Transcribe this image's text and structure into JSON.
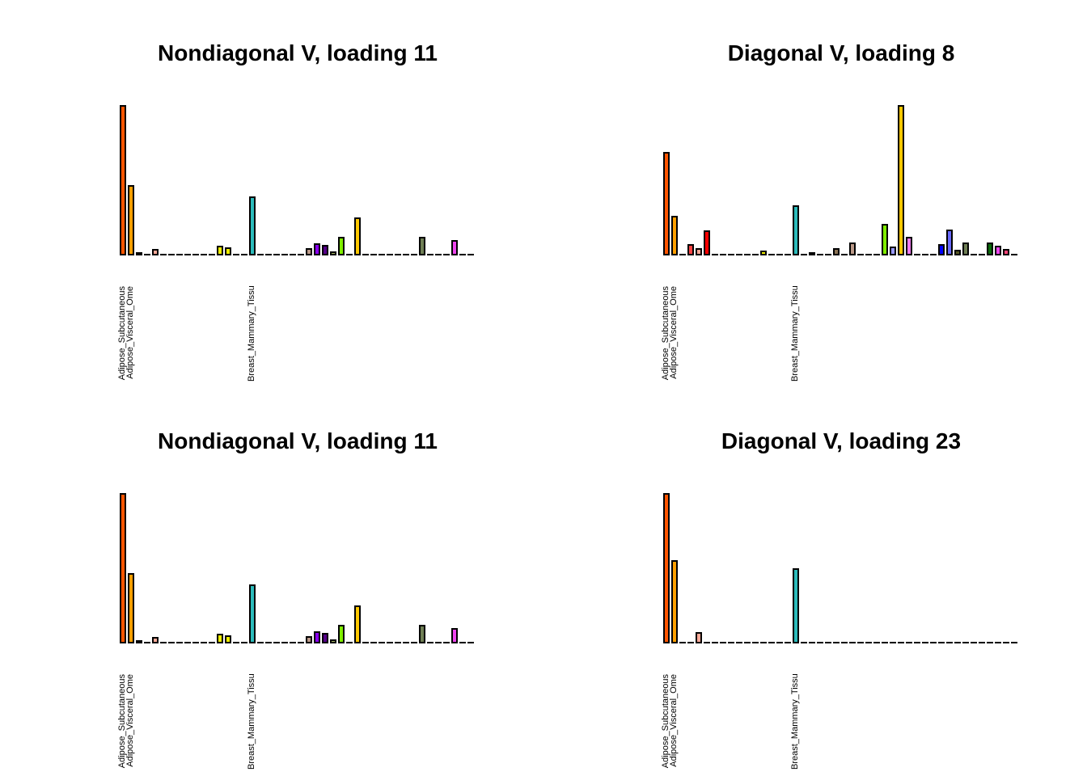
{
  "chart_data": {
    "type": "bar",
    "layout": "2x2-panel-grid",
    "n_bars_per_panel": 44,
    "y_axis": "none",
    "x_axis_style": "dashed baseline formed by zero-height outlined bars",
    "bar_outline_color": "#000000",
    "bar_colors": [
      "#FF5500",
      "#FF9F00",
      "#33DD33",
      "#FF4444",
      "#FFAA99",
      "#FF0000",
      "#EEEE00",
      "#EEEE00",
      "#EEEE00",
      "#EEEE00",
      "#EEEE00",
      "#EEEE00",
      "#EEEE00",
      "#EEEE00",
      "#EEEE00",
      "#EEEE00",
      "#2CBCBC",
      "#CC66FF",
      "#AAEEFF",
      "#EEBB77",
      "#CC9955",
      "#8B7355",
      "#552200",
      "#BB9988",
      "#8800EE",
      "#550088",
      "#AABB66",
      "#7FEE00",
      "#9999FF",
      "#FFC800",
      "#EE7AEE",
      "#995522",
      "#AAFF99",
      "#DDDDDD",
      "#0000FF",
      "#6A6AFF",
      "#555522",
      "#6F7F55",
      "#FFDD99",
      "#AAAAAA",
      "#0A6A0A",
      "#EE44EE",
      "#FF4477",
      "#FF00BB"
    ],
    "x_tick_labels": [
      {
        "bar_index": 1,
        "label": "Adipose_Subcutaneous"
      },
      {
        "bar_index": 2,
        "label": "Adipose_Visceral_Ome"
      },
      {
        "bar_index": 17,
        "label": "Breast_Mammary_Tissu"
      }
    ],
    "panels": [
      {
        "position": "top-left",
        "title": "Nondiagonal V, loading 11",
        "values": [
          186,
          87,
          2,
          0,
          8,
          0,
          0,
          0,
          0,
          0,
          0,
          0,
          12,
          10,
          0,
          0,
          73,
          0,
          0,
          0,
          0,
          0,
          0,
          9,
          15,
          13,
          5,
          23,
          0,
          47,
          0,
          0,
          0,
          0,
          0,
          0,
          0,
          23,
          0,
          0,
          0,
          19,
          0,
          0
        ]
      },
      {
        "position": "top-right",
        "title": "Diagonal V, loading 8",
        "values": [
          128,
          49,
          0,
          14,
          9,
          31,
          0,
          0,
          0,
          0,
          0,
          0,
          6,
          0,
          0,
          0,
          62,
          0,
          2,
          0,
          0,
          9,
          0,
          16,
          0,
          0,
          0,
          39,
          11,
          186,
          23,
          0,
          0,
          0,
          14,
          32,
          7,
          16,
          0,
          0,
          16,
          12,
          8,
          0
        ]
      },
      {
        "position": "bottom-left",
        "title": "Nondiagonal V, loading 11",
        "values": [
          186,
          87,
          2,
          0,
          8,
          0,
          0,
          0,
          0,
          0,
          0,
          0,
          12,
          10,
          0,
          0,
          73,
          0,
          0,
          0,
          0,
          0,
          0,
          9,
          15,
          13,
          5,
          23,
          0,
          47,
          0,
          0,
          0,
          0,
          0,
          0,
          0,
          23,
          0,
          0,
          0,
          19,
          0,
          0
        ]
      },
      {
        "position": "bottom-right",
        "title": "Diagonal V, loading 23",
        "values": [
          186,
          103,
          0,
          0,
          14,
          0,
          0,
          0,
          0,
          0,
          0,
          0,
          0,
          0,
          0,
          0,
          93,
          0,
          0,
          0,
          0,
          0,
          0,
          0,
          0,
          0,
          0,
          0,
          0,
          0,
          0,
          0,
          0,
          0,
          0,
          0,
          0,
          0,
          0,
          0,
          0,
          0,
          0,
          0
        ]
      }
    ]
  }
}
